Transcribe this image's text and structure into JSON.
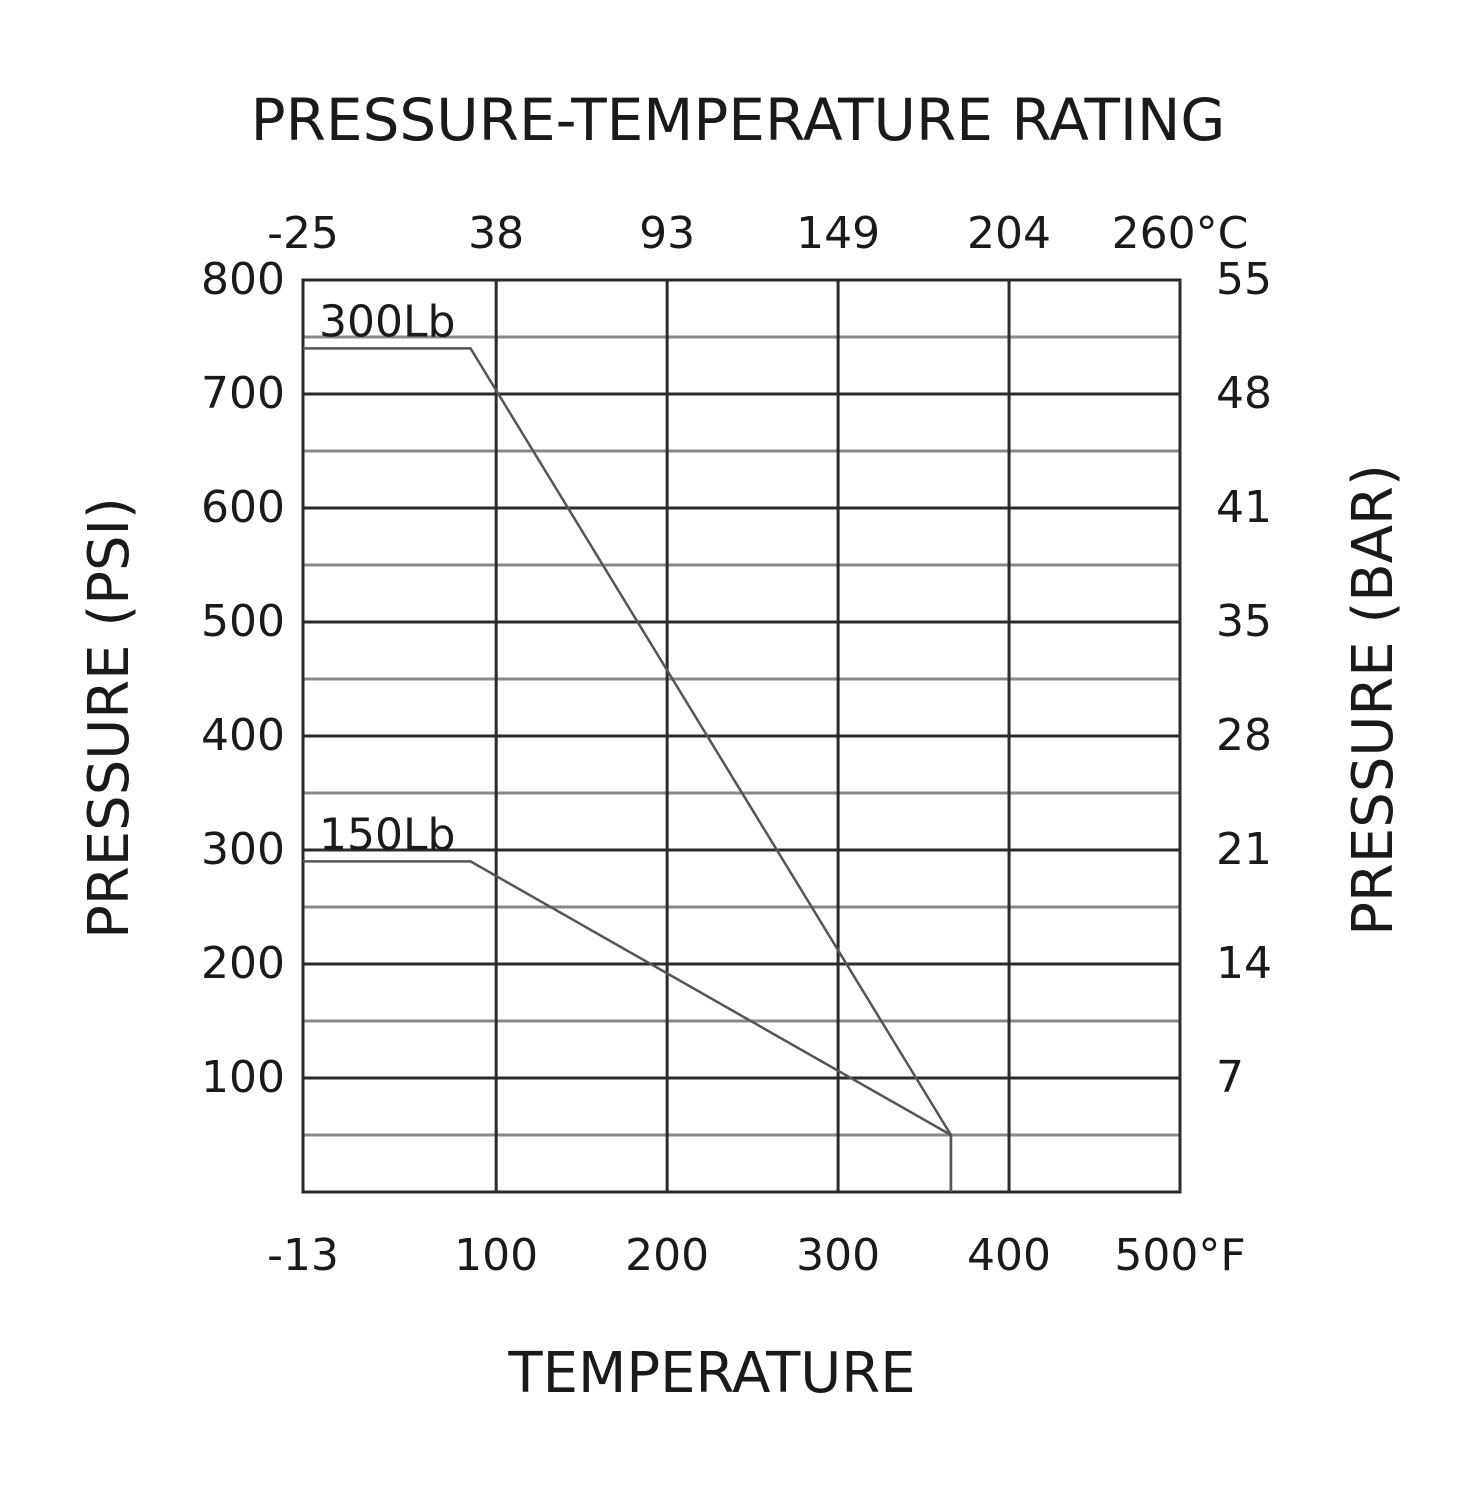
{
  "chart_data": {
    "type": "line",
    "title": "PRESSURE-TEMPERATURE RATING",
    "xlabel": "TEMPERATURE",
    "ylabel_left": "PRESSURE (PSI)",
    "ylabel_right": "PRESSURE (BAR)",
    "x_unit": "°F",
    "xlim": [
      -13,
      500
    ],
    "ylim": [
      0,
      800
    ],
    "x_ticks_bottom": [
      "-13",
      "100",
      "200",
      "300",
      "400",
      "500°F"
    ],
    "x_ticks_top": [
      "-25",
      "38",
      "93",
      "149",
      "204",
      "260°C"
    ],
    "y_ticks_left": [
      "800",
      "700",
      "600",
      "500",
      "400",
      "300",
      "200",
      "100"
    ],
    "y_ticks_right": [
      "55",
      "48",
      "41",
      "35",
      "28",
      "21",
      "14",
      "7"
    ],
    "grid": true,
    "series": [
      {
        "name": "300Lb",
        "points": [
          [
            -13,
            740
          ],
          [
            85,
            740
          ],
          [
            366,
            50
          ],
          [
            366,
            0
          ]
        ]
      },
      {
        "name": "150Lb",
        "points": [
          [
            -13,
            290
          ],
          [
            85,
            290
          ],
          [
            366,
            50
          ],
          [
            366,
            0
          ]
        ]
      }
    ]
  },
  "colors": {
    "grid": "#2b2b2b",
    "minor_grid": "#888888",
    "series": "#555555",
    "text": "#1a1a1a"
  }
}
